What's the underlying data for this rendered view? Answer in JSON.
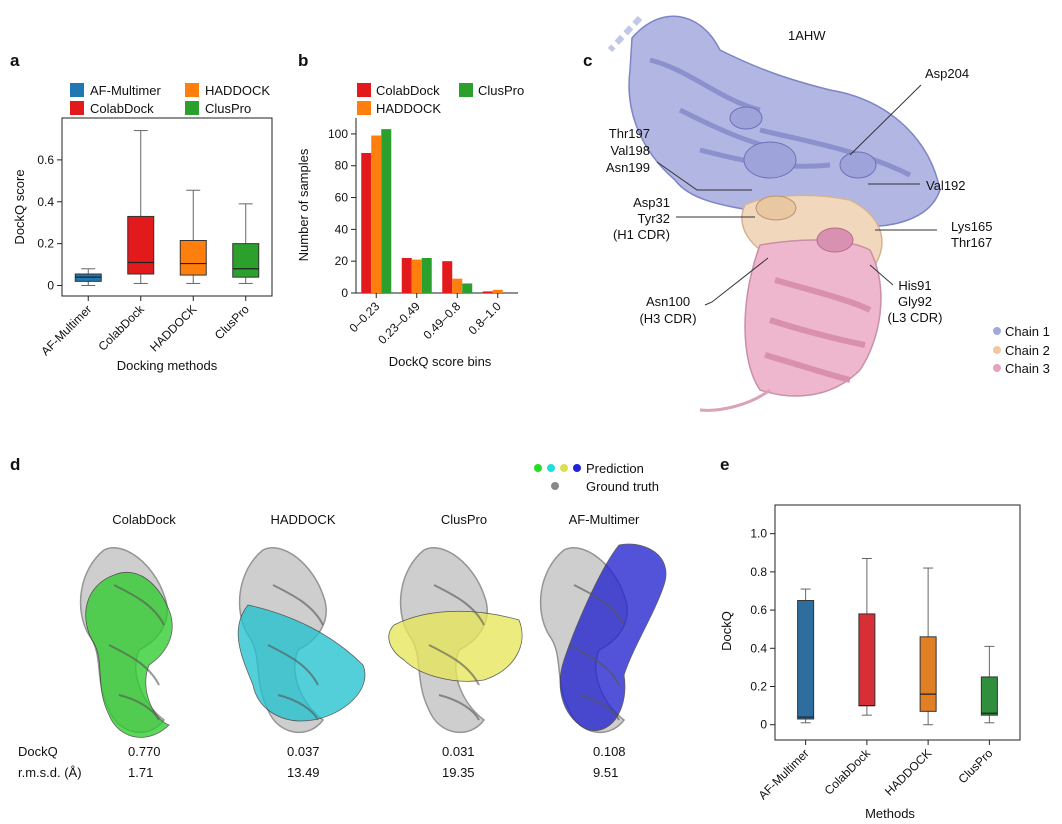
{
  "panels": {
    "a": "a",
    "b": "b",
    "c": "c",
    "d": "d",
    "e": "e"
  },
  "chart_data": [
    {
      "panel": "a",
      "type": "box",
      "title": "",
      "xlabel": "Docking methods",
      "ylabel": "DockQ score",
      "ylim": [
        -0.05,
        0.8
      ],
      "yticks": [
        0,
        0.2,
        0.4,
        0.6
      ],
      "ytick_labels": [
        "0",
        "0.2",
        "0.4",
        "0.6"
      ],
      "legend": [
        "AF-Multimer",
        "HADDOCK",
        "ColabDock",
        "ClusPro"
      ],
      "series": [
        {
          "name": "AF-Multimer",
          "color": "#1f77b4",
          "whisker_low": 0.0,
          "q1": 0.02,
          "median": 0.04,
          "q3": 0.055,
          "whisker_high": 0.08
        },
        {
          "name": "ColabDock",
          "color": "#e31a1c",
          "whisker_low": 0.01,
          "q1": 0.055,
          "median": 0.11,
          "q3": 0.33,
          "whisker_high": 0.74
        },
        {
          "name": "HADDOCK",
          "color": "#ff7f0e",
          "whisker_low": 0.01,
          "q1": 0.05,
          "median": 0.105,
          "q3": 0.215,
          "whisker_high": 0.455
        },
        {
          "name": "ClusPro",
          "color": "#2ca02c",
          "whisker_low": 0.01,
          "q1": 0.04,
          "median": 0.08,
          "q3": 0.2,
          "whisker_high": 0.39
        }
      ]
    },
    {
      "panel": "b",
      "type": "bar",
      "title": "",
      "xlabel": "DockQ score bins",
      "ylabel": "Number of samples",
      "categories": [
        "0–0.23",
        "0.23–0.49",
        "0.49–0.8",
        "0.8–1.0"
      ],
      "ylim": [
        0,
        110
      ],
      "yticks": [
        0,
        20,
        40,
        60,
        80,
        100
      ],
      "ytick_labels": [
        "0",
        "20",
        "40",
        "60",
        "80",
        "100"
      ],
      "legend": [
        "ColabDock",
        "ClusPro",
        "HADDOCK"
      ],
      "series": [
        {
          "name": "ColabDock",
          "color": "#e31a1c",
          "values": [
            88,
            22,
            20,
            1
          ]
        },
        {
          "name": "HADDOCK",
          "color": "#ff7f0e",
          "values": [
            99,
            21,
            9,
            2
          ]
        },
        {
          "name": "ClusPro",
          "color": "#2ca02c",
          "values": [
            103,
            22,
            6,
            0
          ]
        }
      ]
    },
    {
      "panel": "e",
      "type": "box",
      "title": "",
      "xlabel": "Methods",
      "ylabel": "DockQ",
      "ylim": [
        -0.08,
        1.15
      ],
      "yticks": [
        0,
        0.2,
        0.4,
        0.6,
        0.8,
        1.0
      ],
      "ytick_labels": [
        "0",
        "0.2",
        "0.4",
        "0.6",
        "0.8",
        "1.0"
      ],
      "series": [
        {
          "name": "AF-Multimer",
          "color": "#2d6e9e",
          "whisker_low": 0.01,
          "q1": 0.03,
          "median": 0.04,
          "q3": 0.65,
          "whisker_high": 0.71
        },
        {
          "name": "ColabDock",
          "color": "#d62f36",
          "whisker_low": 0.05,
          "q1": 0.1,
          "median": 0.1,
          "q3": 0.58,
          "whisker_high": 0.87
        },
        {
          "name": "HADDOCK",
          "color": "#e07f24",
          "whisker_low": 0.0,
          "q1": 0.07,
          "median": 0.16,
          "q3": 0.46,
          "whisker_high": 0.82
        },
        {
          "name": "ClusPro",
          "color": "#2f8f3c",
          "whisker_low": 0.01,
          "q1": 0.05,
          "median": 0.06,
          "q3": 0.25,
          "whisker_high": 0.41
        }
      ]
    }
  ],
  "structure_c": {
    "pdb_id": "1AHW",
    "annotations": [
      "Asp204",
      "Thr197",
      "Val198",
      "Asn199",
      "Val192",
      "Asp31",
      "Tyr32",
      "(H1 CDR)",
      "Lys165",
      "Thr167",
      "Asn100",
      "(H3 CDR)",
      "His91",
      "Gly92",
      "(L3 CDR)"
    ],
    "legend": [
      {
        "label": "Chain 1",
        "color": "#a3a8dc"
      },
      {
        "label": "Chain 2",
        "color": "#efc9a2"
      },
      {
        "label": "Chain 3",
        "color": "#e7a3bd"
      }
    ]
  },
  "panel_d": {
    "legend_prediction": "Prediction",
    "legend_ground_truth": "Ground truth",
    "prediction_dot_colors": [
      "#22dd22",
      "#22dddd",
      "#dddd55",
      "#2222dd"
    ],
    "ground_truth_color": "#888888",
    "row_labels": {
      "dockq": "DockQ",
      "rmsd": "r.m.s.d. (Å)"
    },
    "methods": [
      {
        "name": "ColabDock",
        "color": "#2ecc2e",
        "dockq": "0.770",
        "rmsd": "1.71"
      },
      {
        "name": "HADDOCK",
        "color": "#22c2cf",
        "dockq": "0.037",
        "rmsd": "13.49"
      },
      {
        "name": "ClusPro",
        "color": "#e6e65a",
        "dockq": "0.031",
        "rmsd": "19.35"
      },
      {
        "name": "AF-Multimer",
        "color": "#2323d0",
        "dockq": "0.108",
        "rmsd": "9.51"
      }
    ]
  }
}
